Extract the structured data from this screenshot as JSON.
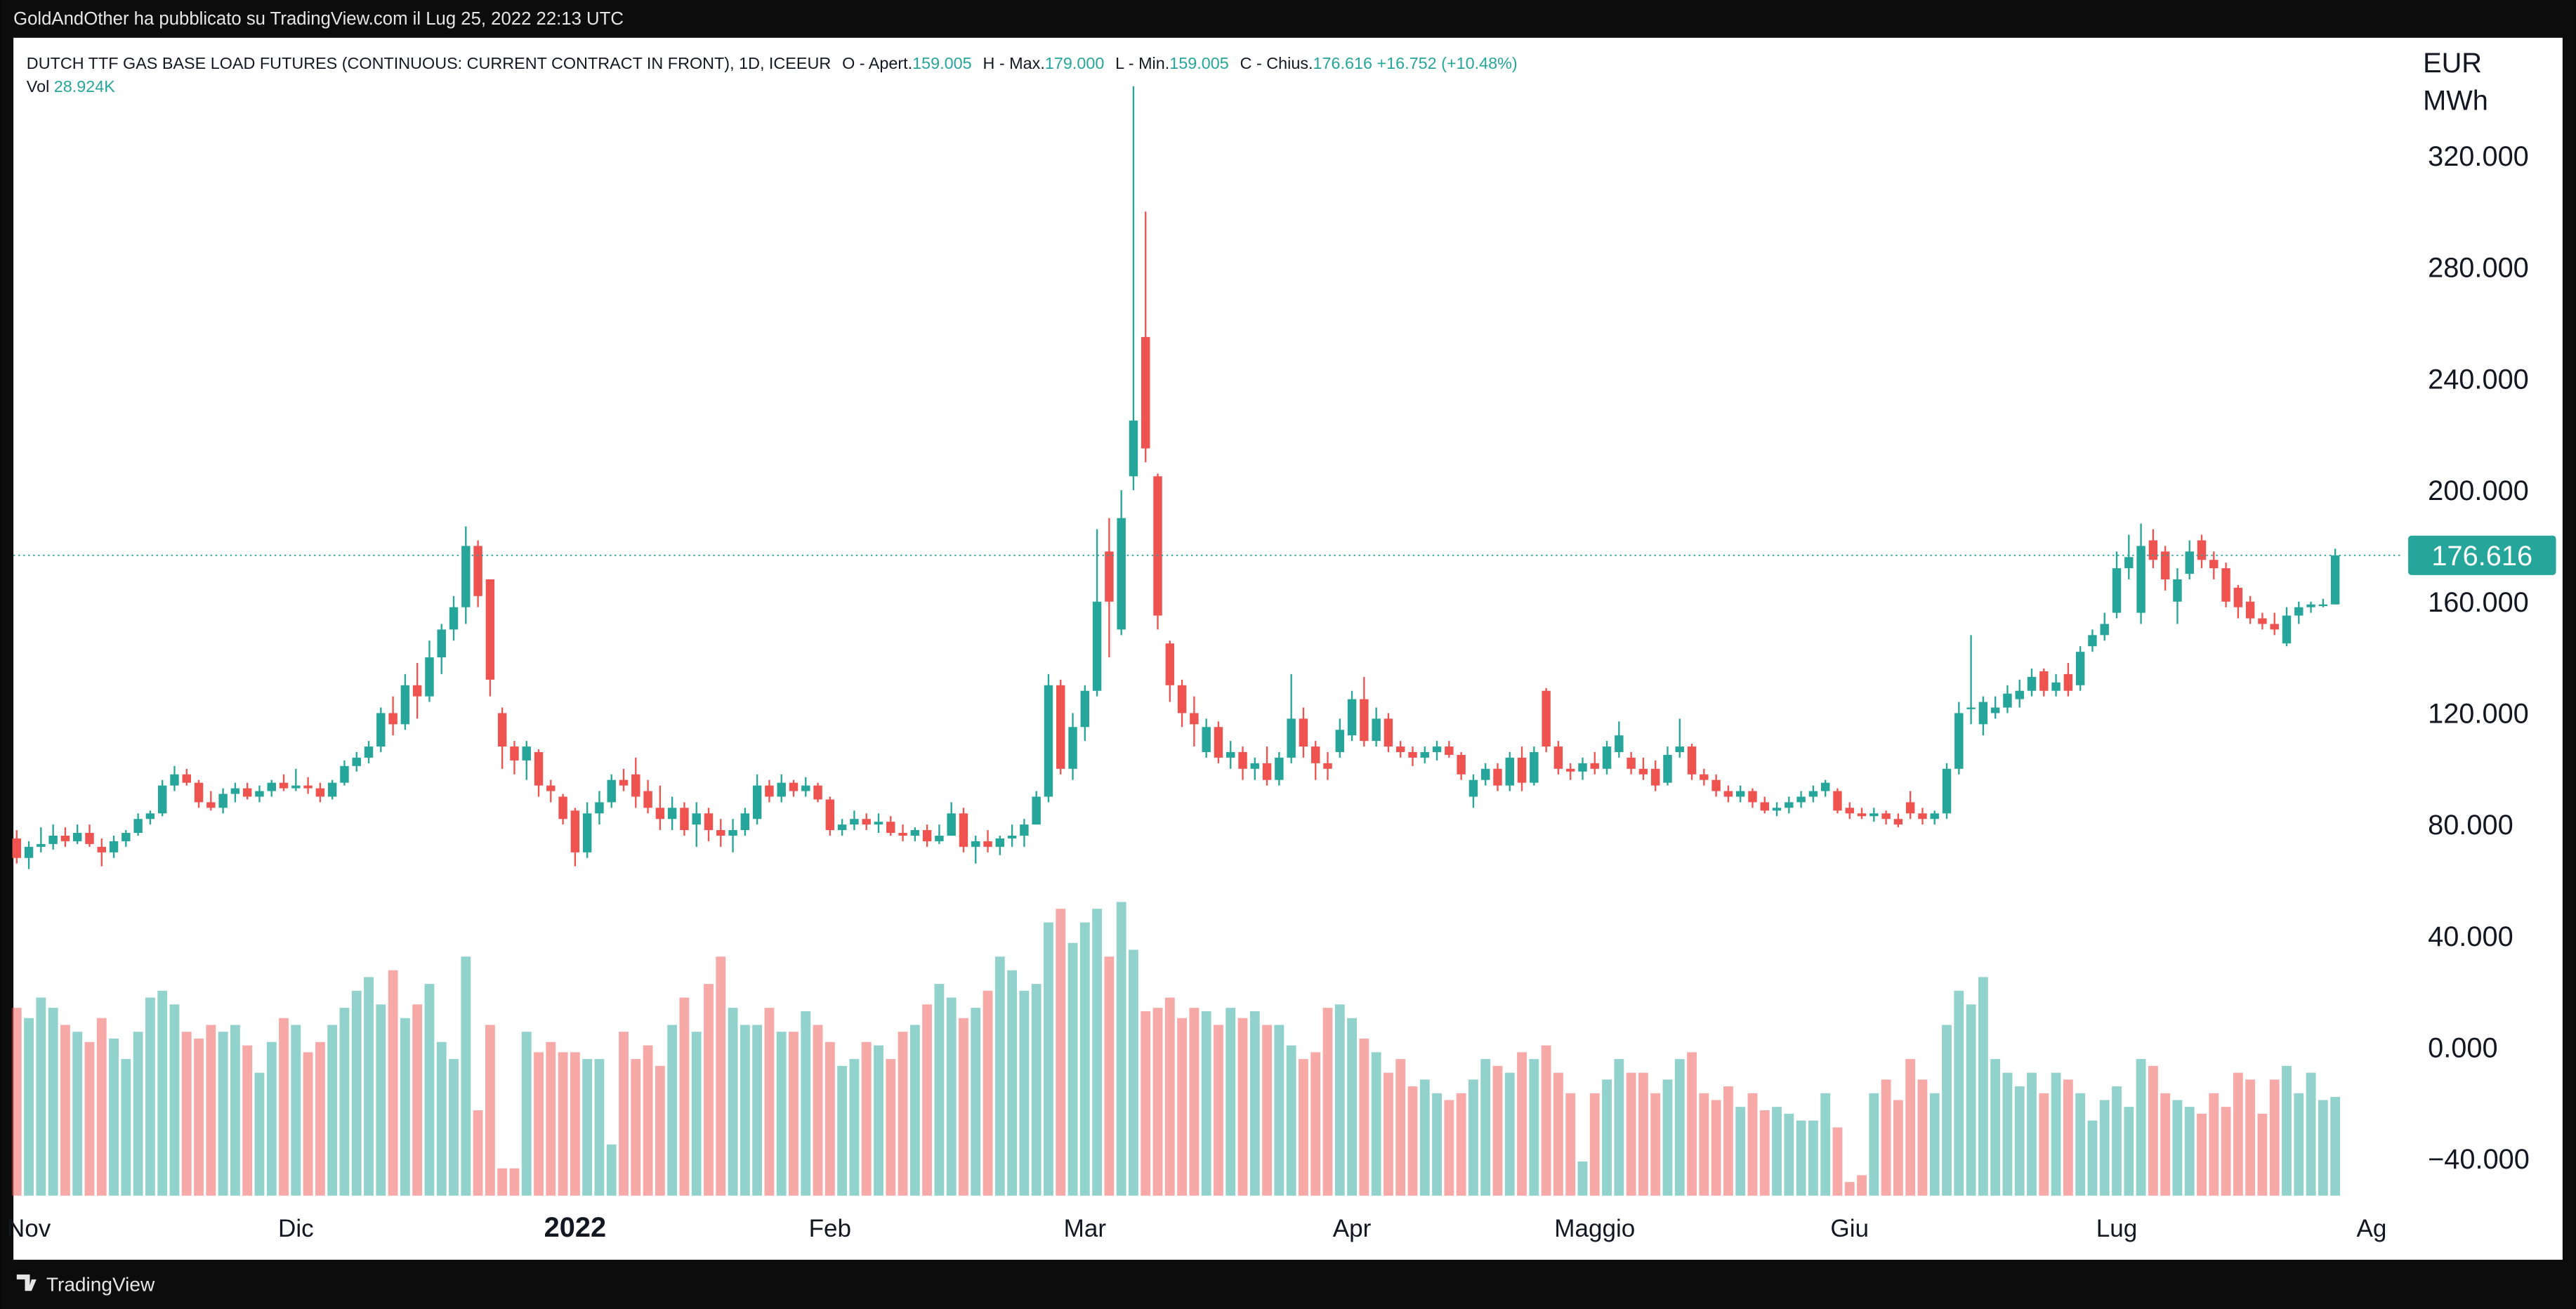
{
  "header": {
    "publisher": "GoldAndOther ha pubblicato su TradingView.com il Lug 25, 2022 22:13 UTC",
    "brand": "TradingView"
  },
  "chart_data": {
    "type": "candlestick",
    "title": "DUTCH TTF GAS BASE LOAD FUTURES (CONTINUOUS: CURRENT CONTRACT IN FRONT), 1D, ICEEUR",
    "legend": {
      "open_label": "O - Apert.",
      "open": "159.005",
      "high_label": "H - Max.",
      "high": "179.000",
      "low_label": "L - Min.",
      "low": "159.005",
      "close_label": "C - Chius.",
      "close": "176.616",
      "change": "+16.752 (+10.48%)",
      "vol_label": "Vol",
      "vol": "28.924K"
    },
    "y_unit": [
      "EUR",
      "MWh"
    ],
    "up_color": "#26a69a",
    "down_color": "#ef5350",
    "price_line": {
      "value": 176.616,
      "label": "176.616"
    },
    "ylim": [
      -54.4,
      362.4
    ],
    "yticks": [
      {
        "value": -40,
        "label": "−40.000"
      },
      {
        "value": 0,
        "label": "0.000"
      },
      {
        "value": 40,
        "label": "40.000"
      },
      {
        "value": 80,
        "label": "80.000"
      },
      {
        "value": 120,
        "label": "120.000"
      },
      {
        "value": 160,
        "label": "160.000"
      },
      {
        "value": 200,
        "label": "200.000"
      },
      {
        "value": 240,
        "label": "240.000"
      },
      {
        "value": 280,
        "label": "280.000"
      },
      {
        "value": 320,
        "label": "320.000"
      }
    ],
    "xlim": [
      -0.27,
      196.2
    ],
    "xticks": [
      {
        "value": 1,
        "label": "Nov"
      },
      {
        "value": 23,
        "label": "Dic"
      },
      {
        "value": 46,
        "label": "2022"
      },
      {
        "value": 67,
        "label": "Feb"
      },
      {
        "value": 88,
        "label": "Mar"
      },
      {
        "value": 110,
        "label": "Apr"
      },
      {
        "value": 130,
        "label": "Maggio"
      },
      {
        "value": 151,
        "label": "Giu"
      },
      {
        "value": 173,
        "label": "Lug"
      },
      {
        "value": 194,
        "label": "Ag"
      }
    ],
    "candles": [
      [
        75,
        78,
        66,
        68
      ],
      [
        68,
        74,
        64,
        72
      ],
      [
        72,
        79,
        70,
        73
      ],
      [
        73,
        80,
        71,
        76
      ],
      [
        76,
        79,
        72,
        74
      ],
      [
        74,
        80,
        73,
        77
      ],
      [
        77,
        80,
        72,
        73
      ],
      [
        72,
        75,
        65,
        70
      ],
      [
        70,
        76,
        68,
        74
      ],
      [
        74,
        78,
        72,
        77
      ],
      [
        77,
        84,
        76,
        82
      ],
      [
        82,
        85,
        80,
        84
      ],
      [
        84,
        96,
        83,
        94
      ],
      [
        94,
        101,
        92,
        98
      ],
      [
        98,
        100,
        94,
        95
      ],
      [
        95,
        96,
        86,
        88
      ],
      [
        88,
        92,
        85,
        86
      ],
      [
        86,
        93,
        84,
        91
      ],
      [
        91,
        95,
        88,
        93
      ],
      [
        93,
        95,
        89,
        90
      ],
      [
        90,
        94,
        88,
        92
      ],
      [
        92,
        96,
        90,
        95
      ],
      [
        95,
        98,
        92,
        93
      ],
      [
        93,
        100,
        92,
        94
      ],
      [
        94,
        97,
        91,
        93
      ],
      [
        93,
        95,
        88,
        90
      ],
      [
        90,
        96,
        89,
        95
      ],
      [
        95,
        103,
        94,
        101
      ],
      [
        101,
        106,
        99,
        104
      ],
      [
        104,
        110,
        102,
        108
      ],
      [
        108,
        122,
        106,
        120
      ],
      [
        120,
        126,
        112,
        116
      ],
      [
        116,
        134,
        114,
        130
      ],
      [
        130,
        138,
        118,
        126
      ],
      [
        126,
        146,
        124,
        140
      ],
      [
        140,
        152,
        134,
        150
      ],
      [
        150,
        162,
        146,
        158
      ],
      [
        158,
        187,
        152,
        180
      ],
      [
        180,
        182,
        158,
        162
      ],
      [
        168,
        168,
        126,
        132
      ],
      [
        120,
        122,
        100,
        108
      ],
      [
        108,
        110,
        98,
        103
      ],
      [
        103,
        110,
        96,
        108
      ],
      [
        106,
        107,
        90,
        94
      ],
      [
        94,
        96,
        88,
        92
      ],
      [
        90,
        91,
        80,
        82
      ],
      [
        85,
        86,
        65,
        70
      ],
      [
        70,
        88,
        68,
        84
      ],
      [
        84,
        92,
        80,
        88
      ],
      [
        88,
        98,
        86,
        96
      ],
      [
        96,
        100,
        92,
        94
      ],
      [
        98,
        104,
        86,
        90
      ],
      [
        92,
        96,
        84,
        86
      ],
      [
        86,
        94,
        78,
        82
      ],
      [
        82,
        90,
        78,
        86
      ],
      [
        86,
        88,
        76,
        78
      ],
      [
        80,
        88,
        72,
        84
      ],
      [
        84,
        86,
        74,
        78
      ],
      [
        78,
        82,
        72,
        76
      ],
      [
        76,
        82,
        70,
        78
      ],
      [
        78,
        86,
        76,
        84
      ],
      [
        82,
        98,
        80,
        94
      ],
      [
        94,
        96,
        88,
        90
      ],
      [
        90,
        98,
        88,
        95
      ],
      [
        95,
        96,
        90,
        92
      ],
      [
        92,
        97,
        90,
        94
      ],
      [
        94,
        95,
        88,
        89
      ],
      [
        89,
        90,
        76,
        78
      ],
      [
        78,
        82,
        76,
        80
      ],
      [
        80,
        85,
        78,
        82
      ],
      [
        82,
        84,
        78,
        80
      ],
      [
        80,
        84,
        77,
        81
      ],
      [
        81,
        83,
        76,
        77
      ],
      [
        77,
        80,
        74,
        76
      ],
      [
        76,
        79,
        74,
        78
      ],
      [
        78,
        80,
        72,
        74
      ],
      [
        74,
        80,
        73,
        76
      ],
      [
        76,
        88,
        76,
        84
      ],
      [
        84,
        86,
        70,
        72
      ],
      [
        72,
        76,
        66,
        74
      ],
      [
        74,
        78,
        70,
        72
      ],
      [
        72,
        76,
        69,
        75
      ],
      [
        75,
        80,
        72,
        76
      ],
      [
        76,
        82,
        72,
        80
      ],
      [
        80,
        92,
        80,
        90
      ],
      [
        90,
        134,
        88,
        130
      ],
      [
        130,
        132,
        98,
        100
      ],
      [
        100,
        120,
        96,
        115
      ],
      [
        115,
        130,
        110,
        128
      ],
      [
        128,
        186,
        126,
        160
      ],
      [
        178,
        190,
        140,
        160
      ],
      [
        150,
        200,
        148,
        190
      ],
      [
        205,
        345,
        200,
        225
      ],
      [
        255,
        300,
        210,
        215
      ],
      [
        205,
        206,
        150,
        155
      ],
      [
        145,
        146,
        124,
        130
      ],
      [
        130,
        132,
        115,
        120
      ],
      [
        120,
        126,
        108,
        116
      ],
      [
        106,
        118,
        104,
        115
      ],
      [
        115,
        117,
        102,
        104
      ],
      [
        104,
        110,
        100,
        106
      ],
      [
        106,
        108,
        96,
        100
      ],
      [
        100,
        104,
        96,
        102
      ],
      [
        102,
        108,
        94,
        96
      ],
      [
        96,
        106,
        94,
        104
      ],
      [
        104,
        134,
        102,
        118
      ],
      [
        118,
        122,
        104,
        108
      ],
      [
        108,
        110,
        96,
        102
      ],
      [
        102,
        106,
        96,
        100
      ],
      [
        106,
        118,
        104,
        114
      ],
      [
        112,
        128,
        110,
        125
      ],
      [
        125,
        133,
        108,
        110
      ],
      [
        110,
        122,
        108,
        118
      ],
      [
        118,
        120,
        106,
        108
      ],
      [
        108,
        110,
        104,
        106
      ],
      [
        106,
        108,
        101,
        104
      ],
      [
        104,
        108,
        102,
        106
      ],
      [
        106,
        110,
        103,
        108
      ],
      [
        108,
        110,
        104,
        105
      ],
      [
        105,
        106,
        96,
        98
      ],
      [
        90,
        98,
        86,
        96
      ],
      [
        96,
        102,
        94,
        100
      ],
      [
        100,
        102,
        92,
        94
      ],
      [
        94,
        106,
        92,
        104
      ],
      [
        104,
        108,
        92,
        95
      ],
      [
        95,
        108,
        94,
        106
      ],
      [
        128,
        129,
        106,
        108
      ],
      [
        108,
        110,
        98,
        100
      ],
      [
        100,
        102,
        96,
        99
      ],
      [
        99,
        104,
        96,
        102
      ],
      [
        102,
        106,
        98,
        100
      ],
      [
        100,
        110,
        98,
        108
      ],
      [
        106,
        117,
        104,
        112
      ],
      [
        104,
        106,
        98,
        100
      ],
      [
        100,
        104,
        96,
        98
      ],
      [
        100,
        103,
        92,
        94
      ],
      [
        95,
        108,
        94,
        105
      ],
      [
        106,
        118,
        104,
        108
      ],
      [
        108,
        109,
        96,
        98
      ],
      [
        98,
        100,
        94,
        96
      ],
      [
        96,
        98,
        90,
        92
      ],
      [
        92,
        94,
        88,
        90
      ],
      [
        90,
        94,
        88,
        92
      ],
      [
        92,
        93,
        86,
        88
      ],
      [
        88,
        90,
        84,
        85
      ],
      [
        85,
        88,
        83,
        86
      ],
      [
        86,
        90,
        84,
        88
      ],
      [
        88,
        92,
        86,
        90
      ],
      [
        90,
        94,
        88,
        92
      ],
      [
        92,
        96,
        90,
        95
      ],
      [
        92,
        93,
        84,
        85
      ],
      [
        86,
        88,
        82,
        84
      ],
      [
        84,
        86,
        82,
        83
      ],
      [
        83,
        86,
        81,
        84
      ],
      [
        84,
        85,
        80,
        82
      ],
      [
        82,
        84,
        79,
        80
      ],
      [
        88,
        92,
        82,
        84
      ],
      [
        84,
        86,
        80,
        82
      ],
      [
        82,
        85,
        80,
        84
      ],
      [
        84,
        102,
        82,
        100
      ],
      [
        100,
        124,
        98,
        120
      ],
      [
        122,
        148,
        116,
        122
      ],
      [
        116,
        126,
        112,
        124
      ],
      [
        120,
        126,
        118,
        122
      ],
      [
        122,
        130,
        120,
        127
      ],
      [
        125,
        132,
        122,
        128
      ],
      [
        128,
        136,
        126,
        133
      ],
      [
        135,
        136,
        126,
        128
      ],
      [
        128,
        134,
        126,
        131
      ],
      [
        134,
        138,
        126,
        128
      ],
      [
        130,
        144,
        128,
        142
      ],
      [
        144,
        150,
        142,
        148
      ],
      [
        148,
        156,
        146,
        152
      ],
      [
        156,
        178,
        154,
        172
      ],
      [
        172,
        184,
        168,
        176
      ],
      [
        156,
        188,
        152,
        180
      ],
      [
        182,
        186,
        172,
        175
      ],
      [
        178,
        180,
        164,
        168
      ],
      [
        160,
        172,
        152,
        168
      ],
      [
        170,
        182,
        168,
        178
      ],
      [
        182,
        184,
        172,
        175
      ],
      [
        175,
        178,
        168,
        172
      ],
      [
        172,
        174,
        158,
        160
      ],
      [
        165,
        166,
        154,
        158
      ],
      [
        160,
        162,
        152,
        154
      ],
      [
        154,
        156,
        150,
        152
      ],
      [
        152,
        156,
        148,
        150
      ],
      [
        145,
        158,
        144,
        155
      ],
      [
        155,
        160,
        152,
        158
      ],
      [
        158,
        160,
        156,
        159
      ],
      [
        159,
        161,
        158,
        159
      ],
      [
        159.005,
        179,
        159.005,
        176.616
      ]
    ],
    "volume": {
      "vlim": [
        0,
        340000
      ],
      "values": [
        55000,
        52000,
        58000,
        55000,
        50000,
        48000,
        45000,
        52000,
        46000,
        40000,
        48000,
        58000,
        60000,
        56000,
        48000,
        46000,
        50000,
        48000,
        50000,
        44000,
        36000,
        45000,
        52000,
        50000,
        42000,
        45000,
        50000,
        55000,
        60000,
        64000,
        56000,
        66000,
        52000,
        56000,
        62000,
        45000,
        40000,
        70000,
        25000,
        50000,
        8000,
        8000,
        48000,
        42000,
        45000,
        42000,
        42000,
        40000,
        40000,
        15000,
        48000,
        40000,
        44000,
        38000,
        50000,
        58000,
        48000,
        62000,
        70000,
        55000,
        50000,
        50000,
        55000,
        48000,
        48000,
        54000,
        50000,
        45000,
        38000,
        40000,
        45000,
        44000,
        40000,
        48000,
        50000,
        56000,
        62000,
        58000,
        52000,
        55000,
        60000,
        70000,
        66000,
        60000,
        62000,
        80000,
        84000,
        74000,
        80000,
        84000,
        70000,
        86000,
        72000,
        54000,
        55000,
        58000,
        52000,
        55000,
        54000,
        50000,
        55000,
        52000,
        54000,
        50000,
        50000,
        44000,
        40000,
        42000,
        55000,
        56000,
        52000,
        46000,
        42000,
        36000,
        40000,
        32000,
        34000,
        30000,
        28000,
        30000,
        34000,
        40000,
        38000,
        36000,
        42000,
        40000,
        44000,
        36000,
        30000,
        10000,
        30000,
        34000,
        40000,
        36000,
        36000,
        30000,
        34000,
        40000,
        42000,
        30000,
        28000,
        32000,
        26000,
        30000,
        25000,
        26000,
        24000,
        22000,
        22000,
        30000,
        20000,
        4000,
        6000,
        30000,
        34000,
        28000,
        40000,
        34000,
        30000,
        50000,
        60000,
        56000,
        64000,
        40000,
        36000,
        32000,
        36000,
        30000,
        36000,
        34000,
        30000,
        22000,
        28000,
        32000,
        26000,
        40000,
        38000,
        30000,
        28000,
        26000,
        24000,
        30000,
        26000,
        36000,
        34000,
        24000,
        34000,
        38000,
        30000,
        36000,
        28000,
        28924
      ]
    }
  }
}
